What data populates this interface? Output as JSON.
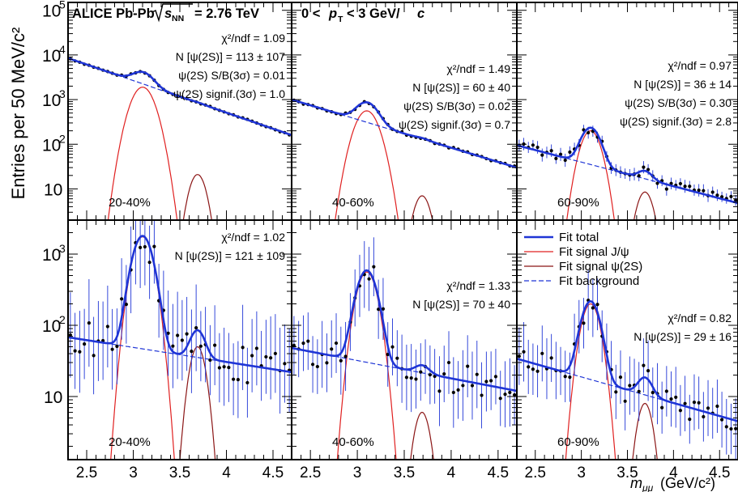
{
  "figure": {
    "ylabel": "Entries per 50 MeV/c²",
    "xlabel": "m",
    "xlabel_sub": "μμ",
    "xlabel_unit": "(GeV/c²)",
    "header": {
      "system": "ALICE Pb-Pb",
      "energy_sqrt": "s",
      "energy_sub": "NN",
      "energy_value": "= 2.76 TeV",
      "pt_pre": "0 <",
      "pt_p": "p",
      "pt_sub": "T",
      "pt_post": "< 3 GeV/",
      "pt_c": "c"
    },
    "x_ticks": [
      "2.5",
      "3",
      "3.5",
      "4",
      "4.5"
    ],
    "top_y_ticks": [
      {
        "v": 10,
        "label": "10"
      },
      {
        "v": 100,
        "label": "10",
        "exp": "2"
      },
      {
        "v": 1000,
        "label": "10",
        "exp": "3"
      },
      {
        "v": 10000,
        "label": "10",
        "exp": "4"
      },
      {
        "v": 100000,
        "label": "10",
        "exp": "5"
      }
    ],
    "bottom_y_ticks": [
      {
        "v": 10,
        "label": "10"
      },
      {
        "v": 100,
        "label": "10",
        "exp": "2"
      },
      {
        "v": 1000,
        "label": "10",
        "exp": "3"
      }
    ],
    "legend": [
      {
        "label": "Fit total",
        "color": "#1f35d6",
        "style": "solid",
        "width": 2.6
      },
      {
        "label": "Fit signal J/ψ",
        "color": "#e02020",
        "style": "solid",
        "width": 1.2
      },
      {
        "label": "Fit signal ψ(2S)",
        "color": "#8b1515",
        "style": "solid",
        "width": 1.2
      },
      {
        "label": "Fit background",
        "color": "#1f35d6",
        "style": "dashed",
        "width": 1.2
      }
    ]
  },
  "chart_data": [
    {
      "type": "scatter",
      "centrality": "20-40%",
      "row": 0,
      "col": 0,
      "xlim": [
        2.3,
        4.7
      ],
      "ylim": [
        2,
        150000
      ],
      "yscale": "log",
      "stats": [
        "χ²/ndf = 1.09",
        "N [ψ(2S)] = 113 ± 107",
        "ψ(2S) S/B(3σ) = 0.01",
        "ψ(2S) signif.(3σ) = 1.0"
      ],
      "fit": {
        "bkg": [
          8500,
          2.3,
          160,
          4.7
        ],
        "jpsi": {
          "A": 1900,
          "mu": 3.1,
          "sigma": 0.1
        },
        "psi2s": {
          "A": 21,
          "mu": 3.69,
          "sigma": 0.07
        }
      },
      "data": {
        "noise": 0.03,
        "err": 0.015
      }
    },
    {
      "type": "scatter",
      "centrality": "40-60%",
      "row": 0,
      "col": 1,
      "xlim": [
        2.3,
        4.7
      ],
      "ylim": [
        2,
        150000
      ],
      "yscale": "log",
      "stats": [
        "χ²/ndf = 1.49",
        "N [ψ(2S)] = 60 ± 40",
        "ψ(2S) S/B(3σ) = 0.02",
        "ψ(2S) signif.(3σ) = 0.7"
      ],
      "fit": {
        "bkg": [
          1000,
          2.3,
          30,
          4.7
        ],
        "jpsi": {
          "A": 560,
          "mu": 3.1,
          "sigma": 0.1
        },
        "psi2s": {
          "A": 7,
          "mu": 3.69,
          "sigma": 0.07
        }
      },
      "data": {
        "noise": 0.05,
        "err": 0.03
      }
    },
    {
      "type": "scatter",
      "centrality": "60-90%",
      "row": 0,
      "col": 2,
      "xlim": [
        2.3,
        4.7
      ],
      "ylim": [
        2,
        150000
      ],
      "yscale": "log",
      "stats": [
        "χ²/ndf = 0.97",
        "N [ψ(2S)] = 36 ± 14",
        "ψ(2S) S/B(3σ) = 0.30",
        "ψ(2S) signif.(3σ) = 2.8"
      ],
      "fit": {
        "bkg": [
          95,
          2.3,
          4.8,
          4.7
        ],
        "jpsi": {
          "A": 200,
          "mu": 3.1,
          "sigma": 0.085
        },
        "psi2s": {
          "A": 8.5,
          "mu": 3.69,
          "sigma": 0.07
        }
      },
      "data": {
        "noise": 0.25,
        "err": 0.12
      }
    },
    {
      "type": "scatter",
      "centrality": "20-40%",
      "row": 1,
      "col": 0,
      "xlim": [
        2.3,
        4.7
      ],
      "ylim": [
        1.3,
        3000
      ],
      "yscale": "log",
      "stats": [
        "χ²/ndf = 1.02",
        "N [ψ(2S)] = 121 ± 109"
      ],
      "fit": {
        "bkg": [
          68,
          2.3,
          22,
          4.7
        ],
        "jpsi": {
          "A": 1750,
          "mu": 3.1,
          "sigma": 0.09
        },
        "psi2s": {
          "A": 50,
          "mu": 3.69,
          "sigma": 0.07
        }
      },
      "data": {
        "noise": 0.6,
        "err": 0.5
      }
    },
    {
      "type": "scatter",
      "centrality": "40-60%",
      "row": 1,
      "col": 1,
      "xlim": [
        2.3,
        4.7
      ],
      "ylim": [
        1.3,
        3000
      ],
      "yscale": "log",
      "stats": [
        "χ²/ndf = 1.33",
        "N [ψ(2S)] = 70 ± 40"
      ],
      "fit": {
        "bkg": [
          48,
          2.3,
          12,
          4.7
        ],
        "jpsi": {
          "A": 560,
          "mu": 3.1,
          "sigma": 0.09
        },
        "psi2s": {
          "A": 6,
          "mu": 3.69,
          "sigma": 0.07
        }
      },
      "data": {
        "noise": 0.5,
        "err": 0.4
      }
    },
    {
      "type": "scatter",
      "centrality": "60-90%",
      "row": 1,
      "col": 2,
      "xlim": [
        2.3,
        4.7
      ],
      "ylim": [
        1.3,
        3000
      ],
      "yscale": "log",
      "stats": [
        "χ²/ndf = 0.82",
        "N [ψ(2S)] = 29 ± 16"
      ],
      "fit": {
        "bkg": [
          34,
          2.3,
          4.5,
          4.7
        ],
        "jpsi": {
          "A": 200,
          "mu": 3.1,
          "sigma": 0.085
        },
        "psi2s": {
          "A": 8,
          "mu": 3.69,
          "sigma": 0.07
        }
      },
      "data": {
        "noise": 0.4,
        "err": 0.35
      }
    }
  ]
}
